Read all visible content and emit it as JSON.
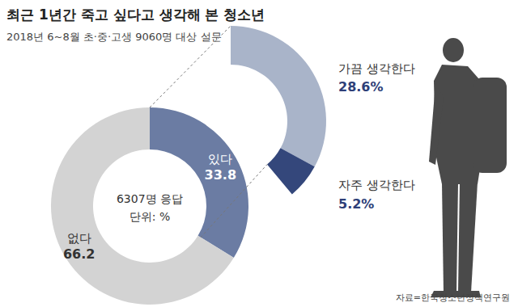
{
  "chart_data": {
    "type": "pie",
    "title": "최근 1년간 죽고 싶다고 생각해 본 청소년",
    "subtitle": "2018년 6~8월 초·중·고생 9060명 대상 설문",
    "annotations": [
      "6307명 응답",
      "단위: %"
    ],
    "categories": [
      "없다",
      "있다"
    ],
    "values": [
      66.2,
      33.8
    ],
    "colors": [
      "#d3d3d3",
      "#6b7ca3"
    ],
    "data_labels": true,
    "breakdown": {
      "categories": [
        "가끔 생각한다",
        "자주 생각한다"
      ],
      "values": [
        28.6,
        5.2
      ],
      "value_labels": [
        "28.6%",
        "5.2%"
      ],
      "colors": [
        "#a9b4c9",
        "#34477b"
      ]
    },
    "source": "자료=한국청소년정책연구원"
  }
}
